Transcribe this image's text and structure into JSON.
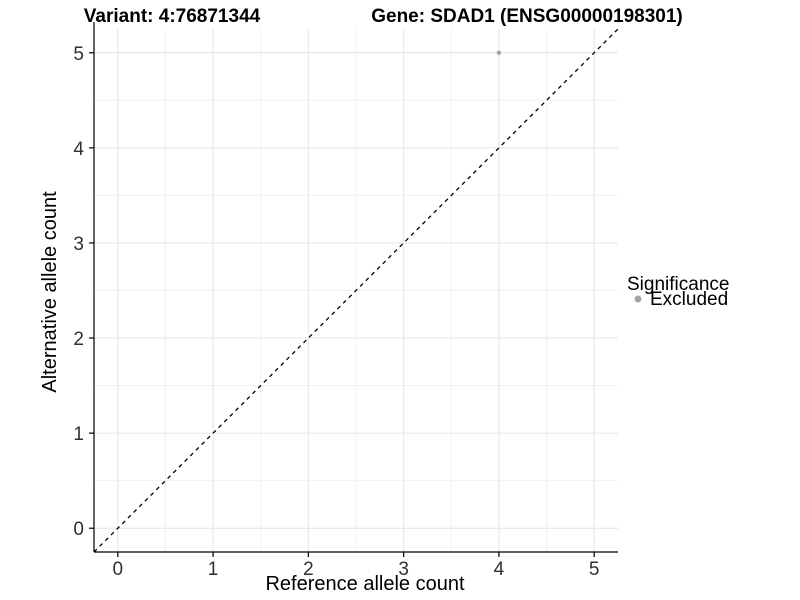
{
  "chart_data": {
    "type": "scatter",
    "titles": {
      "left": "Variant: 4:76871344",
      "right": "Gene: SDAD1 (ENSG00000198301)"
    },
    "xlabel": "Reference allele count",
    "ylabel": "Alternative allele count",
    "xlim": [
      -0.25,
      5.25
    ],
    "ylim": [
      -0.25,
      5.25
    ],
    "x_ticks": [
      0,
      1,
      2,
      3,
      4,
      5
    ],
    "y_ticks": [
      0,
      1,
      2,
      3,
      4,
      5
    ],
    "x_minor_ticks": [
      0.5,
      1.5,
      2.5,
      3.5,
      4.5
    ],
    "y_minor_ticks": [
      0.5,
      1.5,
      2.5,
      3.5,
      4.5
    ],
    "grid": true,
    "series": [
      {
        "name": "Excluded",
        "color": "#a6a6a6",
        "points": [
          {
            "x": 4,
            "y": 5
          }
        ]
      }
    ],
    "reference_line": {
      "slope": 1,
      "intercept": 0,
      "style": "dashed",
      "color": "#000000"
    },
    "legend": {
      "title": "Significance",
      "position": "right",
      "items": [
        {
          "label": "Excluded",
          "marker_color": "#a6a6a6"
        }
      ]
    },
    "colors": {
      "background": "#ffffff",
      "grid_major": "#e4e4e4",
      "grid_minor": "#f0f0f0",
      "axis_line": "#000000",
      "tick_mark": "#000000",
      "tick_label": "#303030"
    }
  }
}
